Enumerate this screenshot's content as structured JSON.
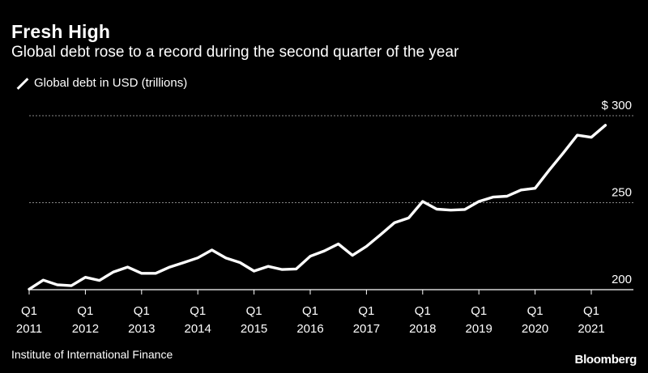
{
  "header": {
    "title": "Fresh High",
    "subtitle": "Global debt rose to a record during the second quarter of the year"
  },
  "legend": {
    "label": "Global debt in USD (trillions)"
  },
  "footer": {
    "source": "Institute of International Finance",
    "brand": "Bloomberg"
  },
  "colors": {
    "background": "#000000",
    "line": "#ffffff",
    "grid": "#888888"
  },
  "chart_data": {
    "type": "line",
    "title": "Fresh High",
    "subtitle": "Global debt rose to a record during the second quarter of the year",
    "xlabel": "",
    "ylabel": "",
    "ylim": [
      200,
      300
    ],
    "yticks": [
      {
        "value": 200,
        "label": "200"
      },
      {
        "value": 250,
        "label": "250"
      },
      {
        "value": 300,
        "label": "$ 300"
      }
    ],
    "xticks": [
      {
        "quarter": "Q1",
        "year": "2011",
        "x": "2011-Q1"
      },
      {
        "quarter": "Q1",
        "year": "2012",
        "x": "2012-Q1"
      },
      {
        "quarter": "Q1",
        "year": "2013",
        "x": "2013-Q1"
      },
      {
        "quarter": "Q1",
        "year": "2014",
        "x": "2014-Q1"
      },
      {
        "quarter": "Q1",
        "year": "2015",
        "x": "2015-Q1"
      },
      {
        "quarter": "Q1",
        "year": "2016",
        "x": "2016-Q1"
      },
      {
        "quarter": "Q1",
        "year": "2017",
        "x": "2017-Q1"
      },
      {
        "quarter": "Q1",
        "year": "2018",
        "x": "2018-Q1"
      },
      {
        "quarter": "Q1",
        "year": "2019",
        "x": "2019-Q1"
      },
      {
        "quarter": "Q1",
        "year": "2020",
        "x": "2020-Q1"
      },
      {
        "quarter": "Q1",
        "year": "2021",
        "x": "2021-Q1"
      }
    ],
    "grid": true,
    "series": [
      {
        "name": "Global debt in USD (trillions)",
        "x": [
          "2011-Q1",
          "2011-Q2",
          "2011-Q3",
          "2011-Q4",
          "2012-Q1",
          "2012-Q2",
          "2012-Q3",
          "2012-Q4",
          "2013-Q1",
          "2013-Q2",
          "2013-Q3",
          "2013-Q4",
          "2014-Q1",
          "2014-Q2",
          "2014-Q3",
          "2014-Q4",
          "2015-Q1",
          "2015-Q2",
          "2015-Q3",
          "2015-Q4",
          "2016-Q1",
          "2016-Q2",
          "2016-Q3",
          "2016-Q4",
          "2017-Q1",
          "2017-Q2",
          "2017-Q3",
          "2017-Q4",
          "2018-Q1",
          "2018-Q2",
          "2018-Q3",
          "2018-Q4",
          "2019-Q1",
          "2019-Q2",
          "2019-Q3",
          "2019-Q4",
          "2020-Q1",
          "2020-Q2",
          "2020-Q3",
          "2020-Q4",
          "2021-Q1",
          "2021-Q2"
        ],
        "values": [
          200.3,
          205.5,
          202.8,
          202.3,
          207.1,
          205.3,
          210.2,
          213.0,
          209.4,
          209.4,
          213.0,
          215.6,
          218.3,
          222.8,
          218.2,
          215.6,
          210.7,
          213.4,
          211.6,
          211.9,
          219.2,
          222.3,
          226.3,
          219.7,
          224.9,
          231.6,
          238.5,
          241.2,
          250.7,
          246.3,
          245.7,
          246.1,
          250.7,
          253.2,
          253.7,
          257.3,
          258.3,
          268.7,
          278.5,
          288.8,
          287.6,
          294.5
        ]
      }
    ]
  }
}
